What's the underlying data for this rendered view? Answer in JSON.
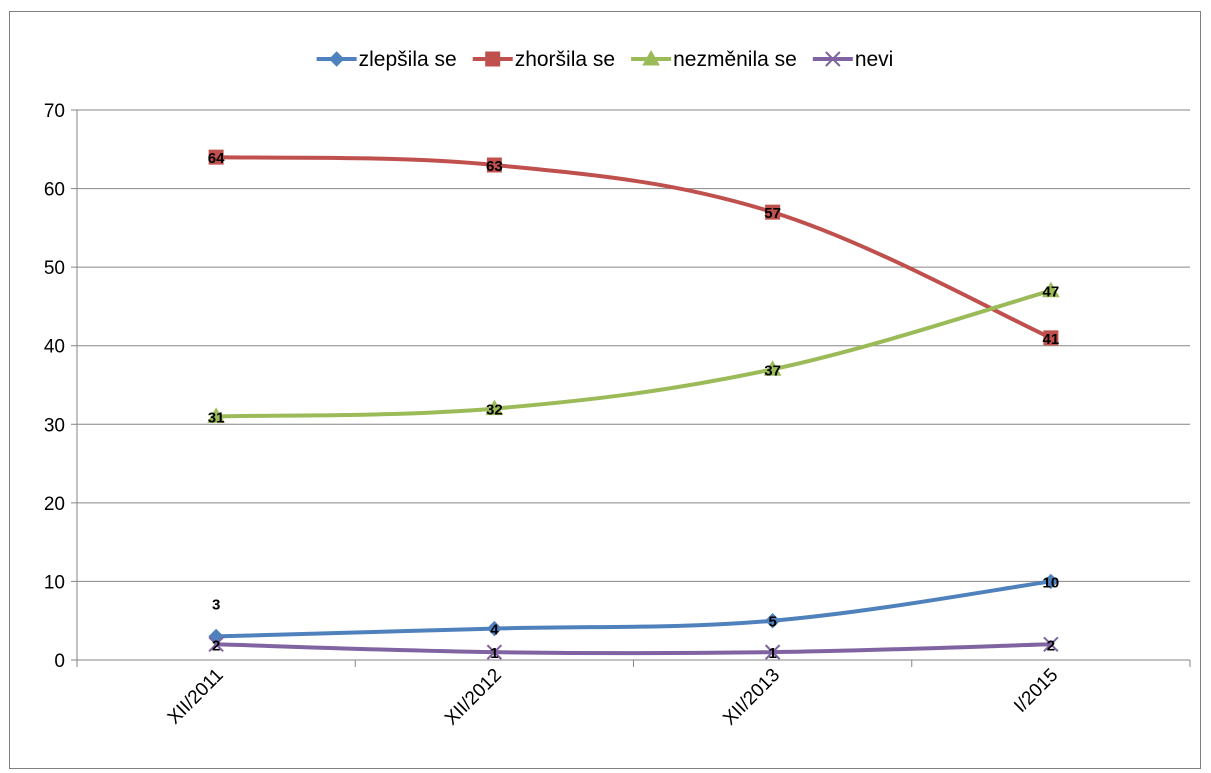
{
  "chart_data": {
    "type": "line",
    "categories": [
      "XII/2011",
      "XII/2012",
      "XII/2013",
      "I/2015"
    ],
    "ylim": [
      0,
      70
    ],
    "yticks": [
      "0",
      "10",
      "20",
      "30",
      "40",
      "50",
      "60",
      "70"
    ],
    "grid": true,
    "legend_position": "top",
    "series": [
      {
        "name": "zlepšila se",
        "values": [
          3,
          4,
          5,
          10
        ],
        "labels": [
          "3",
          "4",
          "5",
          "10"
        ],
        "color": "#4f81bd",
        "marker": "diamond"
      },
      {
        "name": "zhoršila se",
        "values": [
          64,
          63,
          57,
          41
        ],
        "labels": [
          "64",
          "63",
          "57",
          "41"
        ],
        "color": "#c0504d",
        "marker": "square"
      },
      {
        "name": "nezměnila se",
        "values": [
          31,
          32,
          37,
          47
        ],
        "labels": [
          "31",
          "32",
          "37",
          "47"
        ],
        "color": "#9bbb59",
        "marker": "triangle"
      },
      {
        "name": "nevi",
        "values": [
          2,
          1,
          1,
          2
        ],
        "labels": [
          "2",
          "1",
          "1",
          "2"
        ],
        "color": "#8064a2",
        "marker": "x"
      }
    ]
  }
}
